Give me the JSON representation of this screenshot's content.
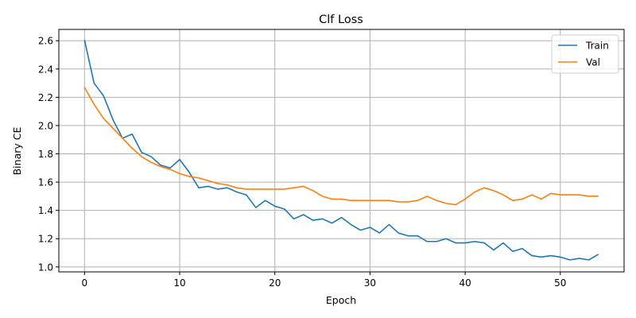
{
  "chart_data": {
    "type": "line",
    "title": "Clf Loss",
    "xlabel": "Epoch",
    "ylabel": "Binary CE",
    "xlim": [
      -2.7,
      56.7
    ],
    "ylim": [
      0.965,
      2.68
    ],
    "xticks": [
      0,
      10,
      20,
      30,
      40,
      50
    ],
    "yticks": [
      1.0,
      1.2,
      1.4,
      1.6,
      1.8,
      2.0,
      2.2,
      2.4,
      2.6
    ],
    "grid": true,
    "legend_position": "top-right",
    "series": [
      {
        "name": "Train",
        "color": "#1f77b4",
        "values": [
          2.605,
          2.3,
          2.21,
          2.04,
          1.91,
          1.94,
          1.81,
          1.78,
          1.72,
          1.7,
          1.76,
          1.67,
          1.56,
          1.57,
          1.55,
          1.56,
          1.53,
          1.51,
          1.42,
          1.47,
          1.43,
          1.41,
          1.34,
          1.37,
          1.33,
          1.34,
          1.31,
          1.35,
          1.3,
          1.26,
          1.28,
          1.24,
          1.3,
          1.24,
          1.22,
          1.22,
          1.18,
          1.18,
          1.2,
          1.17,
          1.17,
          1.18,
          1.17,
          1.12,
          1.17,
          1.11,
          1.13,
          1.08,
          1.07,
          1.08,
          1.07,
          1.05,
          1.06,
          1.05,
          1.09
        ]
      },
      {
        "name": "Val",
        "color": "#ff7f0e",
        "values": [
          2.27,
          2.15,
          2.05,
          1.98,
          1.91,
          1.84,
          1.78,
          1.74,
          1.71,
          1.69,
          1.66,
          1.64,
          1.63,
          1.61,
          1.59,
          1.58,
          1.56,
          1.55,
          1.55,
          1.55,
          1.55,
          1.55,
          1.56,
          1.57,
          1.54,
          1.5,
          1.48,
          1.48,
          1.47,
          1.47,
          1.47,
          1.47,
          1.47,
          1.46,
          1.46,
          1.47,
          1.5,
          1.47,
          1.45,
          1.44,
          1.48,
          1.53,
          1.56,
          1.54,
          1.51,
          1.47,
          1.48,
          1.51,
          1.48,
          1.52,
          1.51,
          1.51,
          1.51,
          1.5,
          1.5
        ]
      }
    ]
  }
}
